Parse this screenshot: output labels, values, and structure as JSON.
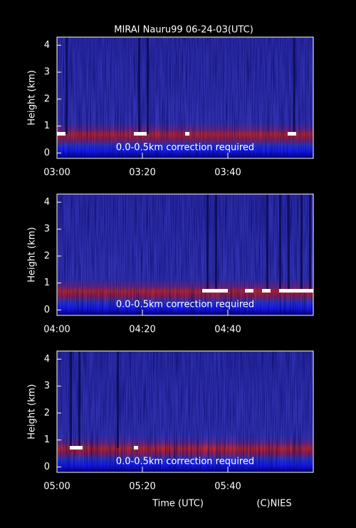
{
  "chart_data": [
    {
      "type": "lidar",
      "title": "MIRAI Nauru99 06-24-03(UTC)",
      "y_label": "Height (km)",
      "annotation": "0.0-0.5km correction required",
      "xlim": [
        0,
        60
      ],
      "xticks": [
        {
          "value": 0,
          "label": "03:00"
        },
        {
          "value": 20,
          "label": "03:20"
        },
        {
          "value": 40,
          "label": "03:40"
        }
      ],
      "ylim": [
        -0.2,
        4.3
      ],
      "yticks": [
        0,
        1,
        2,
        3,
        4
      ]
    },
    {
      "type": "lidar",
      "y_label": "Height (km)",
      "annotation": "0.0-0.5km correction required",
      "xlim": [
        0,
        60
      ],
      "xticks": [
        {
          "value": 0,
          "label": "04:00"
        },
        {
          "value": 20,
          "label": "04:20"
        },
        {
          "value": 40,
          "label": "04:40"
        }
      ],
      "ylim": [
        -0.2,
        4.3
      ],
      "yticks": [
        0,
        1,
        2,
        3,
        4
      ]
    },
    {
      "type": "lidar",
      "y_label": "Height (km)",
      "annotation": "0.0-0.5km correction required",
      "xlim": [
        0,
        60
      ],
      "xticks": [
        {
          "value": 0,
          "label": "05:00"
        },
        {
          "value": 20,
          "label": "05:20"
        },
        {
          "value": 40,
          "label": "05:40"
        }
      ],
      "ylim": [
        -0.2,
        4.3
      ],
      "yticks": [
        0,
        1,
        2,
        3,
        4
      ],
      "x_label": "Time (UTC)",
      "credit": "(C)NIES"
    }
  ]
}
